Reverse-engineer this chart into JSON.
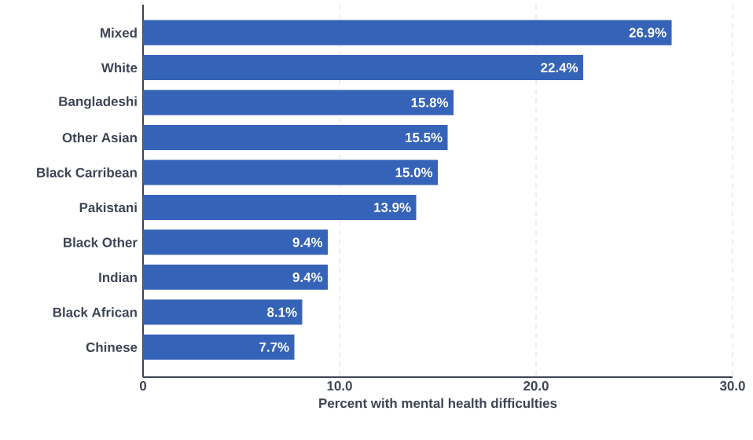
{
  "chart_data": {
    "type": "bar",
    "orientation": "horizontal",
    "xlabel": "Percent with mental health difficulties",
    "categories": [
      "Mixed",
      "White",
      "Bangladeshi",
      "Other Asian",
      "Black Carribean",
      "Pakistani",
      "Black Other",
      "Indian",
      "Black African",
      "Chinese"
    ],
    "values": [
      26.9,
      22.4,
      15.8,
      15.5,
      15.0,
      13.9,
      9.4,
      9.4,
      8.1,
      7.7
    ],
    "value_labels": [
      "26.9%",
      "22.4%",
      "15.8%",
      "15.5%",
      "15.0%",
      "13.9%",
      "9.4%",
      "9.4%",
      "8.1%",
      "7.7%"
    ],
    "color": "#3563b8",
    "xlim": [
      0,
      30
    ],
    "xticks": [
      0,
      {
        "value": 10,
        "label": "10.0"
      },
      {
        "value": 20,
        "label": "20.0"
      },
      {
        "value": 30,
        "label": "30.0"
      }
    ],
    "grid": "x"
  }
}
